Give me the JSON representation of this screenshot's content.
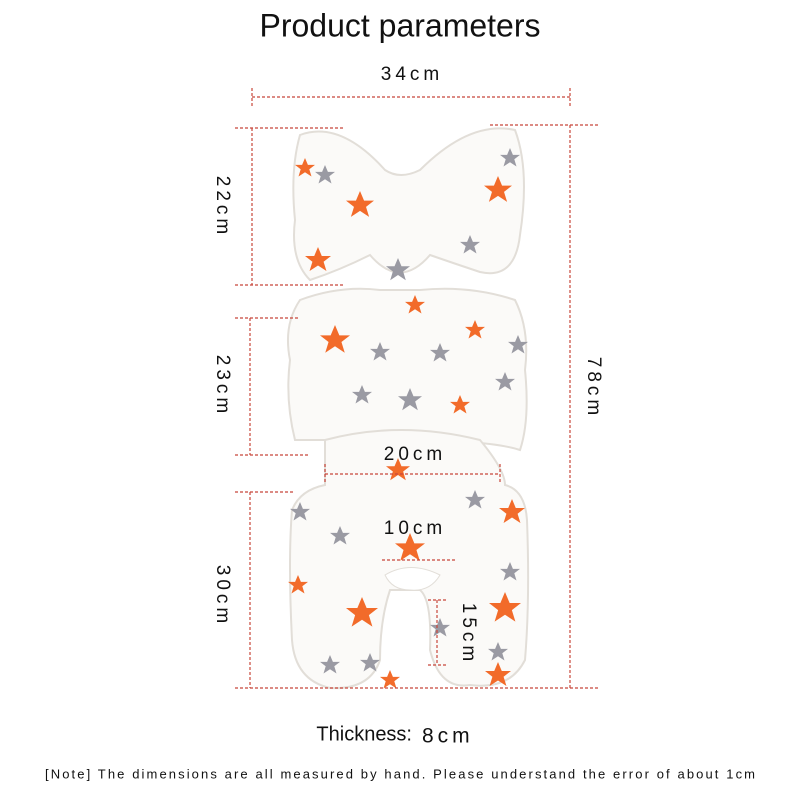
{
  "title": "Product  parameters",
  "dimensions": {
    "width": "34cm",
    "head": "22cm",
    "body": "23cm",
    "seat": "30cm",
    "total": "78cm",
    "waist": "20cm",
    "crotch_width": "10cm",
    "crotch_length": "15cm"
  },
  "thickness": {
    "label": "Thickness:",
    "value": "8cm"
  },
  "note": "[Note] The dimensions are all measured by hand. Please understand the error of about 1cm"
}
